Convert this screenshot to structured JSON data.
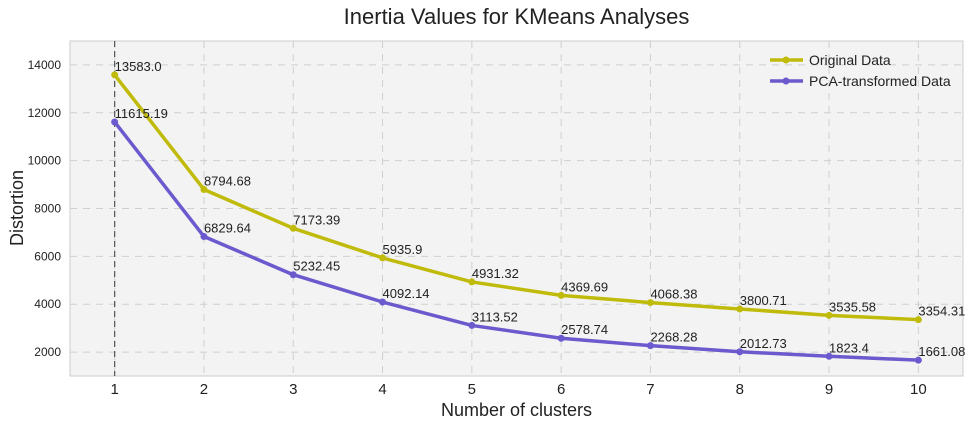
{
  "chart_data": {
    "type": "line",
    "title": "Inertia Values for KMeans Analyses",
    "xlabel": "Number of clusters",
    "ylabel": "Distortion",
    "x": [
      1,
      2,
      3,
      4,
      5,
      6,
      7,
      8,
      9,
      10
    ],
    "xlim": [
      0.5,
      10.5
    ],
    "ylim": [
      1000,
      15000
    ],
    "x_ticks": [
      "1",
      "2",
      "3",
      "4",
      "5",
      "6",
      "7",
      "8",
      "9",
      "10"
    ],
    "y_ticks": [
      "2000",
      "4000",
      "6000",
      "8000",
      "10000",
      "12000",
      "14000"
    ],
    "grid": true,
    "legend_position": "top-right",
    "vline_x": 1,
    "series": [
      {
        "name": "Original Data",
        "color": "#c0bb0a",
        "values": [
          13583.0,
          8794.68,
          7173.39,
          5935.9,
          4931.32,
          4369.69,
          4068.38,
          3800.71,
          3535.58,
          3354.31
        ],
        "labels": [
          "13583.0",
          "8794.68",
          "7173.39",
          "5935.9",
          "4931.32",
          "4369.69",
          "4068.38",
          "3800.71",
          "3535.58",
          "3354.31"
        ]
      },
      {
        "name": "PCA-transformed Data",
        "color": "#6a5acd",
        "values": [
          11615.19,
          6829.64,
          5232.45,
          4092.14,
          3113.52,
          2578.74,
          2268.28,
          2012.73,
          1823.4,
          1661.08
        ],
        "labels": [
          "11615.19",
          "6829.64",
          "5232.45",
          "4092.14",
          "3113.52",
          "2578.74",
          "2268.28",
          "2012.73",
          "1823.4",
          "1661.08"
        ]
      }
    ]
  }
}
